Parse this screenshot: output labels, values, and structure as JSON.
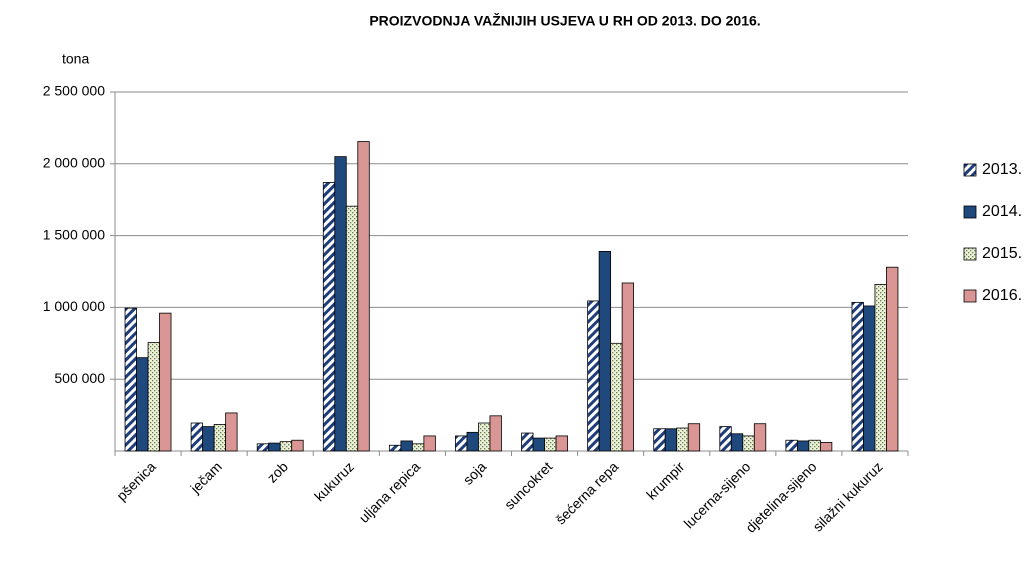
{
  "chart_data": {
    "type": "bar",
    "title": "PROIZVODNJA VAŽNIJIH USJEVA U RH OD 2013. DO 2016.",
    "y_label": "tona",
    "categories": [
      "pšenica",
      "ječam",
      "zob",
      "kukuruz",
      "uljana repica",
      "soja",
      "suncokret",
      "šećerna repa",
      "krumpir",
      "lucerna-sijeno",
      "djetelina-sijeno",
      "silažni kukuruz"
    ],
    "series": [
      {
        "name": "2013.",
        "color": "#1f3d7a",
        "pattern": "diagonal",
        "values": [
          995000,
          195000,
          50000,
          1870000,
          40000,
          105000,
          125000,
          1045000,
          155000,
          170000,
          75000,
          1035000
        ]
      },
      {
        "name": "2014.",
        "color": "#1f497d",
        "pattern": "solid",
        "values": [
          650000,
          170000,
          55000,
          2050000,
          70000,
          130000,
          90000,
          1390000,
          155000,
          120000,
          70000,
          1010000
        ]
      },
      {
        "name": "2015.",
        "color": "#9bbb59",
        "pattern": "dots",
        "values": [
          755000,
          185000,
          65000,
          1705000,
          50000,
          195000,
          90000,
          750000,
          160000,
          105000,
          75000,
          1160000
        ]
      },
      {
        "name": "2016.",
        "color": "#d99694",
        "pattern": "solid",
        "values": [
          960000,
          265000,
          75000,
          2155000,
          105000,
          245000,
          105000,
          1170000,
          190000,
          190000,
          60000,
          1280000
        ]
      }
    ],
    "ylim": [
      0,
      2500000
    ],
    "yticks": [
      {
        "value": 500000,
        "label": "500 000"
      },
      {
        "value": 1000000,
        "label": "1 000 000"
      },
      {
        "value": 1500000,
        "label": "1 500 000"
      },
      {
        "value": 2000000,
        "label": "2 000 000"
      },
      {
        "value": 2500000,
        "label": "2 500 000"
      }
    ],
    "grid": true,
    "legend": "right"
  }
}
